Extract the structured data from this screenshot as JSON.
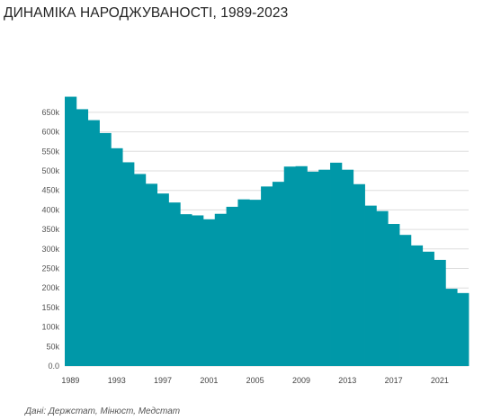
{
  "title": "ДИНАМІКА НАРОДЖУВАНОСТІ, 1989-2023",
  "source": "Дані: Держстат, Мінюст, Медстат",
  "colors": {
    "bar": "#0098a8",
    "grid": "#dddddd",
    "text": "#222222"
  },
  "chart_data": {
    "type": "bar",
    "title": "ДИНАМІКА НАРОДЖУВАНОСТІ, 1989-2023",
    "xlabel": "",
    "ylabel": "",
    "ylim": [
      0,
      700000
    ],
    "grid": true,
    "yticks": [
      0,
      50000,
      100000,
      150000,
      200000,
      250000,
      300000,
      350000,
      400000,
      450000,
      500000,
      550000,
      600000,
      650000
    ],
    "ytick_labels": [
      "0.0",
      "50k",
      "100k",
      "150k",
      "200k",
      "250k",
      "300k",
      "350k",
      "400k",
      "450k",
      "500k",
      "550k",
      "600k",
      "650k"
    ],
    "xtick_labels": [
      "1989",
      "1993",
      "1997",
      "2001",
      "2005",
      "2009",
      "2013",
      "2017",
      "2021"
    ],
    "categories": [
      "1989",
      "1990",
      "1991",
      "1992",
      "1993",
      "1994",
      "1995",
      "1996",
      "1997",
      "1998",
      "1999",
      "2000",
      "2001",
      "2002",
      "2003",
      "2004",
      "2005",
      "2006",
      "2007",
      "2008",
      "2009",
      "2010",
      "2011",
      "2012",
      "2013",
      "2014",
      "2015",
      "2016",
      "2017",
      "2018",
      "2019",
      "2020",
      "2021",
      "2022",
      "2023"
    ],
    "values": [
      690000,
      658000,
      630000,
      597000,
      558000,
      522000,
      492000,
      467000,
      442000,
      419000,
      389000,
      386000,
      376000,
      390000,
      408000,
      427000,
      426000,
      460000,
      472000,
      511000,
      512000,
      498000,
      503000,
      521000,
      503000,
      466000,
      411000,
      397000,
      364000,
      336000,
      309000,
      293000,
      272000,
      198000,
      187000
    ]
  }
}
